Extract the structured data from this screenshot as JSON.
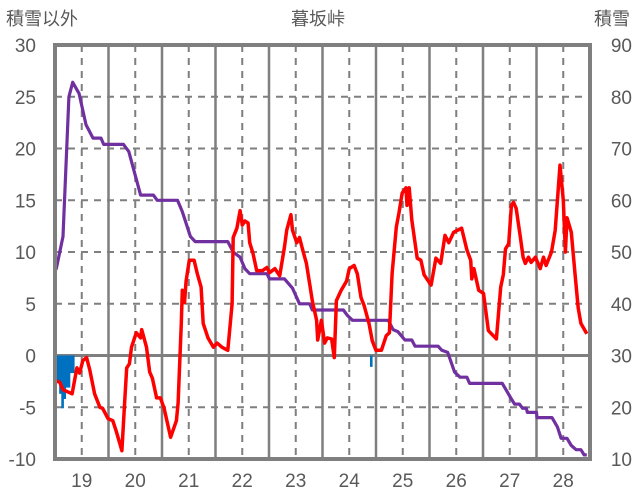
{
  "chart_data": {
    "type": "line",
    "title": "暮坂峠",
    "ylabel_left": "積雪以外",
    "ylabel_right": "積雪",
    "xlim": [
      18.5,
      28.5
    ],
    "ylim_left": [
      -10,
      30
    ],
    "ylim_right": [
      10,
      90
    ],
    "x_ticks": [
      19,
      20,
      21,
      22,
      23,
      24,
      25,
      26,
      27,
      28
    ],
    "x_tick_labels": [
      "19",
      "20",
      "21",
      "22",
      "23",
      "24",
      "25",
      "26",
      "27",
      "28"
    ],
    "y_ticks_left": [
      "30",
      "25",
      "20",
      "15",
      "10",
      "5",
      "0",
      "-5",
      "-10"
    ],
    "y_ticks_left_values": [
      30,
      25,
      20,
      15,
      10,
      5,
      0,
      -5,
      -10
    ],
    "y_ticks_right": [
      "90",
      "80",
      "70",
      "60",
      "50",
      "40",
      "30",
      "20",
      "10"
    ],
    "y_ticks_right_values": [
      90,
      80,
      70,
      60,
      50,
      40,
      30,
      20,
      10
    ],
    "grid": true,
    "colors": {
      "temperature": "#ff0000",
      "snow": "#7030a0",
      "bars": "#0070c0",
      "axis": "#7f7f7f"
    },
    "series": [
      {
        "name": "temperature",
        "axis": "left",
        "kind": "line",
        "points": [
          [
            18.5,
            -2.4
          ],
          [
            18.59,
            -2.6
          ],
          [
            18.65,
            -3.3
          ],
          [
            18.82,
            -3.7
          ],
          [
            18.91,
            -1.2
          ],
          [
            18.96,
            -1.7
          ],
          [
            19.02,
            -0.5
          ],
          [
            19.09,
            -0.2
          ],
          [
            19.15,
            -1.4
          ],
          [
            19.24,
            -3.7
          ],
          [
            19.34,
            -5.0
          ],
          [
            19.39,
            -5.1
          ],
          [
            19.49,
            -6.1
          ],
          [
            19.58,
            -6.3
          ],
          [
            19.65,
            -7.4
          ],
          [
            19.75,
            -9.2
          ],
          [
            19.8,
            -4.6
          ],
          [
            19.84,
            -1.2
          ],
          [
            19.89,
            -0.8
          ],
          [
            19.93,
            0.8
          ],
          [
            20.02,
            2.2
          ],
          [
            20.1,
            1.7
          ],
          [
            20.12,
            2.5
          ],
          [
            20.21,
            0.8
          ],
          [
            20.27,
            -1.6
          ],
          [
            20.32,
            -2.2
          ],
          [
            20.4,
            -4.1
          ],
          [
            20.47,
            -4.1
          ],
          [
            20.54,
            -5.1
          ],
          [
            20.66,
            -7.9
          ],
          [
            20.77,
            -6.3
          ],
          [
            20.8,
            -4.6
          ],
          [
            20.86,
            3.1
          ],
          [
            20.88,
            6.3
          ],
          [
            20.92,
            5.1
          ],
          [
            20.95,
            7.2
          ],
          [
            21.01,
            9.2
          ],
          [
            21.1,
            9.2
          ],
          [
            21.16,
            7.9
          ],
          [
            21.23,
            6.6
          ],
          [
            21.27,
            3.1
          ],
          [
            21.36,
            1.7
          ],
          [
            21.46,
            0.8
          ],
          [
            21.53,
            1.2
          ],
          [
            21.62,
            0.8
          ],
          [
            21.73,
            0.5
          ],
          [
            21.81,
            5.0
          ],
          [
            21.83,
            11.4
          ],
          [
            21.9,
            12.3
          ],
          [
            21.96,
            14.0
          ],
          [
            22.0,
            12.6
          ],
          [
            22.05,
            13.0
          ],
          [
            22.11,
            12.8
          ],
          [
            22.14,
            10.9
          ],
          [
            22.2,
            9.9
          ],
          [
            22.27,
            8.2
          ],
          [
            22.38,
            8.2
          ],
          [
            22.46,
            8.5
          ],
          [
            22.51,
            8.0
          ],
          [
            22.61,
            8.4
          ],
          [
            22.7,
            7.7
          ],
          [
            22.79,
            10.5
          ],
          [
            22.83,
            12.1
          ],
          [
            22.91,
            13.6
          ],
          [
            22.94,
            12.1
          ],
          [
            23.02,
            10.9
          ],
          [
            23.07,
            11.4
          ],
          [
            23.13,
            10.2
          ],
          [
            23.2,
            8.9
          ],
          [
            23.26,
            6.9
          ],
          [
            23.31,
            5.3
          ],
          [
            23.39,
            3.4
          ],
          [
            23.41,
            1.5
          ],
          [
            23.48,
            3.4
          ],
          [
            23.54,
            1.2
          ],
          [
            23.59,
            1.7
          ],
          [
            23.67,
            1.6
          ],
          [
            23.72,
            -0.2
          ],
          [
            23.76,
            5.3
          ],
          [
            23.85,
            6.3
          ],
          [
            23.95,
            7.2
          ],
          [
            24.0,
            8.4
          ],
          [
            24.09,
            8.7
          ],
          [
            24.15,
            7.9
          ],
          [
            24.22,
            5.6
          ],
          [
            24.28,
            4.8
          ],
          [
            24.37,
            3.1
          ],
          [
            24.43,
            1.4
          ],
          [
            24.5,
            0.5
          ],
          [
            24.6,
            0.5
          ],
          [
            24.69,
            1.9
          ],
          [
            24.75,
            2.2
          ],
          [
            24.8,
            7.9
          ],
          [
            24.88,
            12.4
          ],
          [
            24.93,
            13.8
          ],
          [
            24.99,
            15.7
          ],
          [
            25.06,
            16.2
          ],
          [
            25.08,
            14.5
          ],
          [
            25.12,
            16.2
          ],
          [
            25.17,
            13.1
          ],
          [
            25.27,
            9.4
          ],
          [
            25.34,
            9.2
          ],
          [
            25.4,
            7.8
          ],
          [
            25.53,
            6.8
          ],
          [
            25.62,
            9.4
          ],
          [
            25.71,
            8.9
          ],
          [
            25.79,
            11.6
          ],
          [
            25.86,
            10.9
          ],
          [
            25.95,
            11.9
          ],
          [
            26.1,
            12.3
          ],
          [
            26.2,
            10.2
          ],
          [
            26.27,
            9.2
          ],
          [
            26.29,
            7.4
          ],
          [
            26.33,
            8.4
          ],
          [
            26.42,
            6.3
          ],
          [
            26.51,
            6.0
          ],
          [
            26.6,
            2.4
          ],
          [
            26.75,
            1.6
          ],
          [
            26.83,
            6.6
          ],
          [
            26.88,
            7.8
          ],
          [
            26.92,
            10.3
          ],
          [
            26.98,
            10.8
          ],
          [
            27.03,
            14.5
          ],
          [
            27.07,
            14.8
          ],
          [
            27.12,
            14.2
          ],
          [
            27.2,
            11.4
          ],
          [
            27.25,
            9.5
          ],
          [
            27.29,
            8.9
          ],
          [
            27.35,
            9.5
          ],
          [
            27.4,
            9.0
          ],
          [
            27.48,
            9.5
          ],
          [
            27.53,
            8.9
          ],
          [
            27.57,
            8.4
          ],
          [
            27.63,
            9.5
          ],
          [
            27.68,
            8.7
          ],
          [
            27.78,
            10.0
          ],
          [
            27.85,
            12.1
          ],
          [
            27.94,
            18.4
          ],
          [
            28.0,
            15.0
          ],
          [
            28.04,
            10.0
          ],
          [
            28.07,
            13.3
          ],
          [
            28.15,
            11.9
          ],
          [
            28.22,
            7.9
          ],
          [
            28.28,
            4.6
          ],
          [
            28.33,
            3.1
          ],
          [
            28.44,
            2.1
          ]
        ]
      },
      {
        "name": "snow",
        "axis": "right",
        "kind": "line",
        "points": [
          [
            18.52,
            46.6
          ],
          [
            18.65,
            53
          ],
          [
            18.76,
            80
          ],
          [
            18.83,
            82.8
          ],
          [
            18.95,
            80.6
          ],
          [
            19.08,
            74.6
          ],
          [
            19.21,
            72
          ],
          [
            19.36,
            72
          ],
          [
            19.41,
            70.8
          ],
          [
            19.78,
            70.8
          ],
          [
            19.88,
            69.4
          ],
          [
            20.1,
            61
          ],
          [
            20.34,
            61
          ],
          [
            20.41,
            60
          ],
          [
            20.79,
            60
          ],
          [
            20.88,
            57.8
          ],
          [
            21.03,
            53
          ],
          [
            21.12,
            52
          ],
          [
            21.73,
            52
          ],
          [
            21.83,
            50
          ],
          [
            21.96,
            49
          ],
          [
            22.05,
            46.8
          ],
          [
            22.14,
            45.8
          ],
          [
            22.46,
            45.8
          ],
          [
            22.51,
            44.8
          ],
          [
            22.79,
            44.8
          ],
          [
            22.94,
            43
          ],
          [
            23.07,
            40
          ],
          [
            23.26,
            40
          ],
          [
            23.31,
            38.8
          ],
          [
            23.89,
            38.8
          ],
          [
            23.96,
            37.8
          ],
          [
            24.06,
            36.8
          ],
          [
            24.73,
            36.8
          ],
          [
            24.82,
            35
          ],
          [
            24.91,
            34.6
          ],
          [
            25.04,
            33
          ],
          [
            25.17,
            33
          ],
          [
            25.23,
            31.8
          ],
          [
            25.66,
            31.8
          ],
          [
            25.73,
            31
          ],
          [
            25.84,
            30.6
          ],
          [
            25.97,
            26.8
          ],
          [
            26.07,
            25.8
          ],
          [
            26.2,
            25.8
          ],
          [
            26.25,
            24.6
          ],
          [
            26.86,
            24.6
          ],
          [
            27.03,
            21.6
          ],
          [
            27.09,
            20.6
          ],
          [
            27.18,
            20.6
          ],
          [
            27.24,
            19.8
          ],
          [
            27.31,
            19.8
          ],
          [
            27.33,
            19
          ],
          [
            27.5,
            19
          ],
          [
            27.51,
            18
          ],
          [
            27.79,
            18
          ],
          [
            27.89,
            16.2
          ],
          [
            27.96,
            14
          ],
          [
            28.07,
            14
          ],
          [
            28.15,
            12.6
          ],
          [
            28.24,
            11.8
          ],
          [
            28.33,
            11.8
          ],
          [
            28.39,
            10.8
          ],
          [
            28.44,
            10.8
          ]
        ]
      },
      {
        "name": "bars",
        "axis": "left",
        "kind": "bar",
        "points": [
          [
            18.52,
            -2.4
          ],
          [
            18.56,
            -2.4
          ],
          [
            18.6,
            -3.7
          ],
          [
            18.64,
            -5.1
          ],
          [
            18.68,
            -4.2
          ],
          [
            18.72,
            -3.1
          ],
          [
            18.76,
            -3.1
          ],
          [
            18.8,
            -1.7
          ],
          [
            18.84,
            -1.7
          ],
          [
            24.41,
            -1.1
          ]
        ]
      }
    ]
  }
}
